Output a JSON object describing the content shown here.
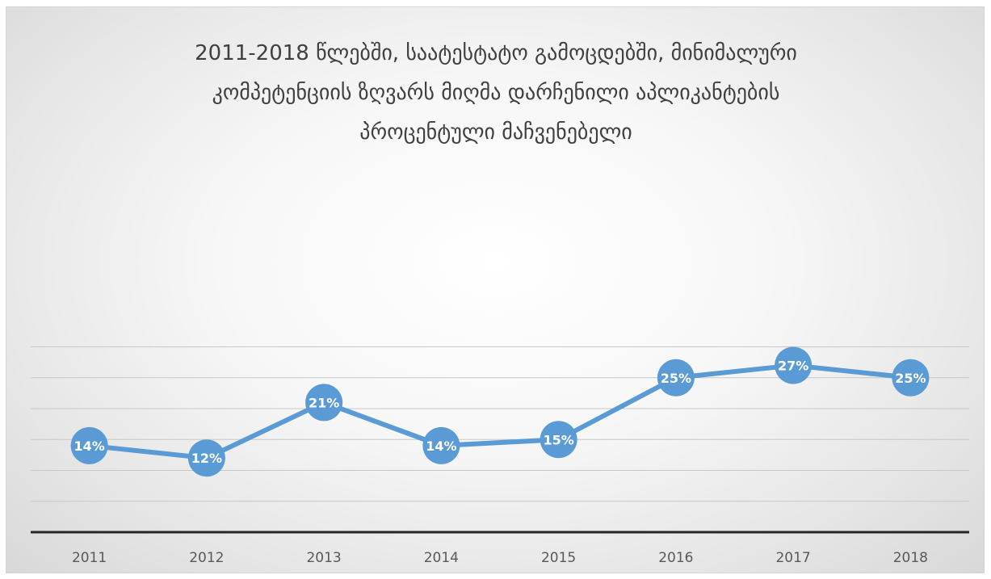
{
  "chart_data": {
    "type": "line",
    "title_lines": [
      "2011-2018 წლებში, საატესტატო გამოცდებში, მინიმალური",
      "კომპეტენციის ზღვარს მიღმა დარჩენილი აპლიკანტების",
      "პროცენტული მაჩვენებელი"
    ],
    "categories": [
      "2011",
      "2012",
      "2013",
      "2014",
      "2015",
      "2016",
      "2017",
      "2018"
    ],
    "series": [
      {
        "values": [
          14,
          12,
          21,
          14,
          15,
          25,
          27,
          25
        ],
        "labels": [
          "14%",
          "12%",
          "21%",
          "14%",
          "15%",
          "25%",
          "27%",
          "25%"
        ]
      }
    ],
    "ylim": [
      0,
      30
    ],
    "y_axis_visible": false,
    "grid": true,
    "legend": "none",
    "colors": {
      "line": "#5b9bd5",
      "marker": "#5b9bd5",
      "gridline": "#c8c8c8",
      "baseline": "#262626"
    }
  }
}
